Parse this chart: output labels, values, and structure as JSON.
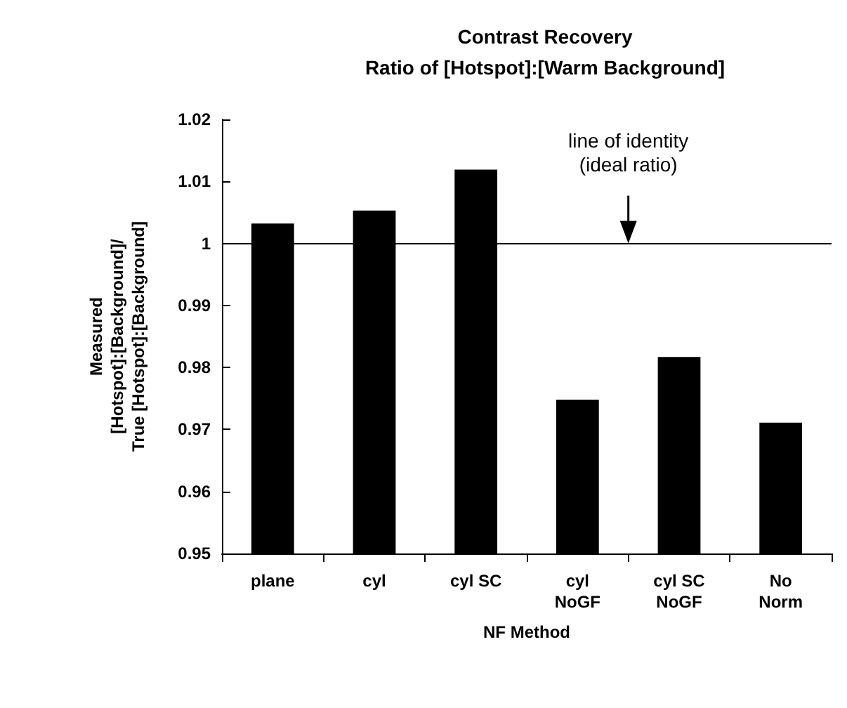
{
  "chart_data": {
    "type": "bar",
    "title": "Contrast Recovery\nRatio of [Hotspot]:[Warm Background]",
    "xlabel": "NF Method",
    "ylabel": "Measured\n[Hotspot]:[Background]/\nTrue [Hotspot]:[Background]",
    "categories": [
      "plane",
      "cyl",
      "cyl SC",
      "cyl\nNoGF",
      "cyl SC\nNoGF",
      "No\nNorm"
    ],
    "values": [
      1.0032,
      1.0053,
      1.0119,
      0.9748,
      0.9817,
      0.9711
    ],
    "color": "#000000",
    "ylim": [
      0.95,
      1.02
    ],
    "yticks": [
      0.95,
      0.96,
      0.97,
      0.98,
      0.99,
      1,
      1.01,
      1.02
    ],
    "grid": false,
    "ref_lines": [
      {
        "axis": "y",
        "value": 1,
        "label": "line of identity\n(ideal ratio)",
        "color": "#000000"
      }
    ]
  }
}
